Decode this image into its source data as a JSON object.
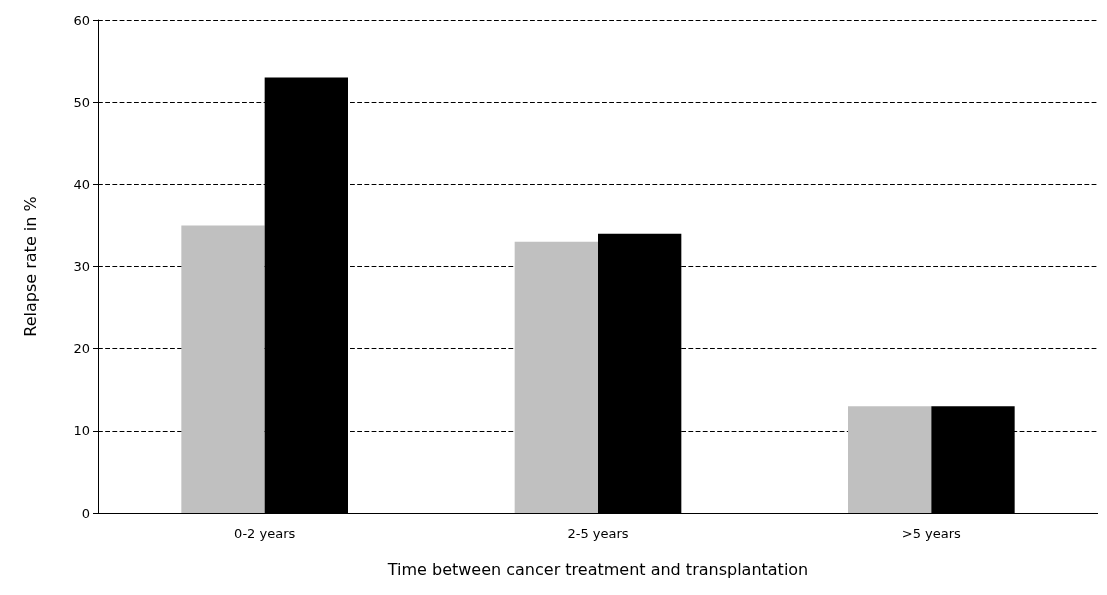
{
  "chart_data": {
    "type": "bar",
    "xlabel": "Time between cancer treatment and transplantation",
    "ylabel": "Relapse rate in %",
    "categories": [
      "0-2 years",
      "2-5 years",
      ">5 years"
    ],
    "series": [
      {
        "color": "#c0c0c0",
        "values": [
          35,
          33,
          13
        ]
      },
      {
        "color": "#000000",
        "values": [
          53,
          34,
          13
        ]
      }
    ],
    "ylim": [
      0,
      60
    ],
    "yticks": [
      0,
      10,
      20,
      30,
      40,
      50,
      60
    ],
    "grid": "y",
    "line_style": "dashed"
  }
}
